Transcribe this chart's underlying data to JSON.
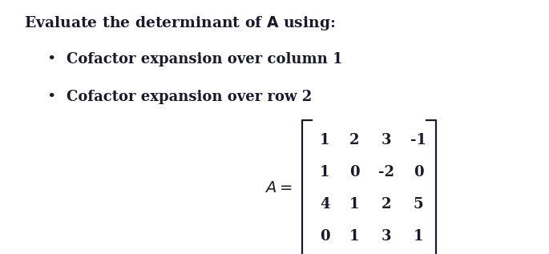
{
  "title": "Evaluate the determinant of $\\mathbf{A}$ using:",
  "bullet1": "Cofactor expansion over column 1",
  "bullet2": "Cofactor expansion over row 2",
  "matrix": [
    [
      "1",
      "2",
      "3",
      "-1"
    ],
    [
      "1",
      "0",
      "-2",
      "0"
    ],
    [
      "4",
      "1",
      "2",
      "5"
    ],
    [
      "0",
      "1",
      "3",
      "1"
    ]
  ],
  "bg_color": "#ffffff",
  "text_color": "#1a1a2e",
  "fontsize_title": 13.5,
  "fontsize_body": 13,
  "fontsize_matrix": 13
}
